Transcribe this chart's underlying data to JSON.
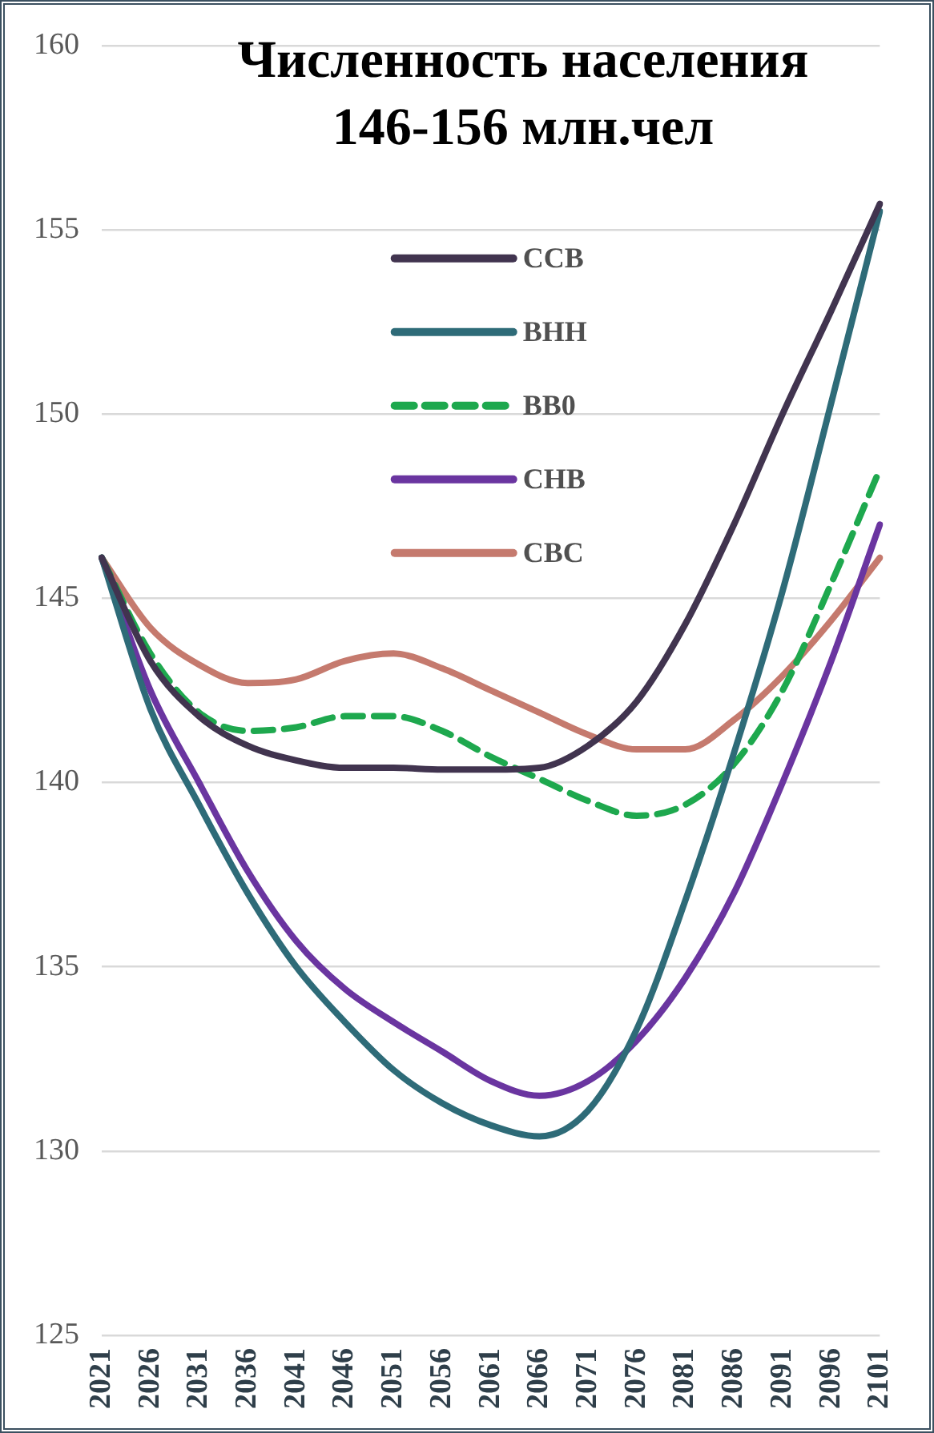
{
  "chart_data": {
    "type": "line",
    "title": "Численность населения 146-156 млн.чел",
    "categories": [
      "2021",
      "2026",
      "2031",
      "2036",
      "2041",
      "2046",
      "2051",
      "2056",
      "2061",
      "2066",
      "2071",
      "2076",
      "2081",
      "2086",
      "2091",
      "2096",
      "2101"
    ],
    "series": [
      {
        "name": "CCB",
        "color": "#41344f",
        "values": [
          146.1,
          143.3,
          141.8,
          141.0,
          140.6,
          140.4,
          140.4,
          140.35,
          140.35,
          140.4,
          141.0,
          142.2,
          144.3,
          147.0,
          150.0,
          152.8,
          155.7
        ]
      },
      {
        "name": "BHH",
        "color": "#2e6b78",
        "values": [
          146.1,
          142.0,
          139.4,
          137.0,
          135.0,
          133.5,
          132.2,
          131.3,
          130.7,
          130.4,
          131.1,
          133.3,
          136.8,
          140.8,
          145.2,
          150.3,
          155.5
        ]
      },
      {
        "name": "BB0",
        "color": "#1ea84e",
        "line_style": "dashed",
        "values": [
          146.1,
          143.5,
          141.9,
          141.4,
          141.5,
          141.8,
          141.8,
          141.4,
          140.7,
          140.1,
          139.5,
          139.1,
          139.4,
          140.5,
          142.5,
          145.4,
          148.5
        ]
      },
      {
        "name": "CHB",
        "color": "#6a35a0",
        "values": [
          146.1,
          142.5,
          140.0,
          137.6,
          135.7,
          134.4,
          133.5,
          132.7,
          131.9,
          131.5,
          131.9,
          133.0,
          134.7,
          137.0,
          140.0,
          143.3,
          147.0
        ]
      },
      {
        "name": "CBC",
        "color": "#c57a6e",
        "values": [
          146.1,
          144.2,
          143.2,
          142.7,
          142.8,
          143.3,
          143.5,
          143.1,
          142.5,
          141.9,
          141.3,
          140.9,
          140.9,
          141.7,
          142.9,
          144.4,
          146.1
        ]
      }
    ],
    "ylim": [
      125,
      160
    ],
    "yticks": [
      125,
      130,
      135,
      140,
      145,
      150,
      155,
      160
    ],
    "grid": "y",
    "legend": "top",
    "marker": "none",
    "line_style": "solid"
  }
}
